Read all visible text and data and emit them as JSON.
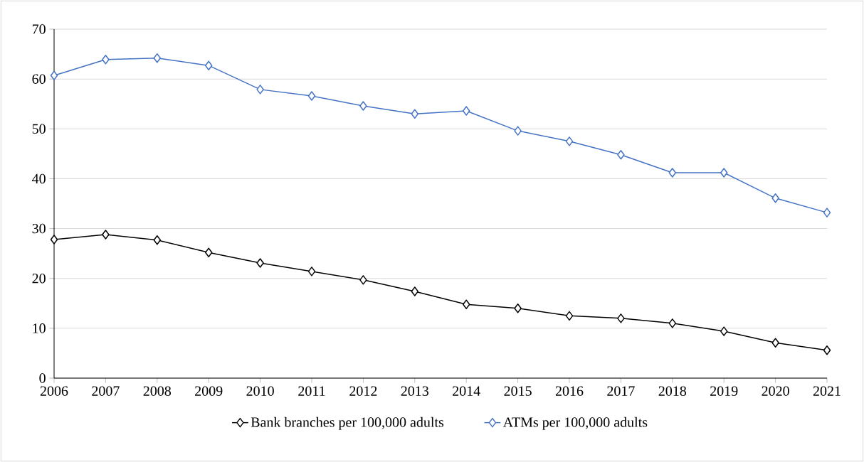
{
  "chart_data": {
    "type": "line",
    "x": [
      2006,
      2007,
      2008,
      2009,
      2010,
      2011,
      2012,
      2013,
      2014,
      2015,
      2016,
      2017,
      2018,
      2019,
      2020,
      2021
    ],
    "series": [
      {
        "name": "Bank branches per 100,000 adults",
        "color": "#000000",
        "values": [
          27.8,
          28.8,
          27.7,
          25.2,
          23.1,
          21.4,
          19.7,
          17.4,
          14.8,
          14.0,
          12.5,
          12.0,
          11.0,
          9.4,
          7.1,
          5.6
        ]
      },
      {
        "name": "ATMs per 100,000 adults",
        "color": "#4472c4",
        "values": [
          60.7,
          63.9,
          64.2,
          62.7,
          57.9,
          56.6,
          54.6,
          53.0,
          53.6,
          49.6,
          47.5,
          44.8,
          41.2,
          41.2,
          36.1,
          33.2
        ]
      }
    ],
    "xlim": [
      2006,
      2021
    ],
    "xticks": [
      2006,
      2007,
      2008,
      2009,
      2010,
      2011,
      2012,
      2013,
      2014,
      2015,
      2016,
      2017,
      2018,
      2019,
      2020,
      2021
    ],
    "ylim": [
      0,
      70
    ],
    "yticks": [
      0,
      10,
      20,
      30,
      40,
      50,
      60,
      70
    ],
    "grid": "y",
    "legend": "bottom",
    "marker": "diamond",
    "line_style": "solid"
  }
}
